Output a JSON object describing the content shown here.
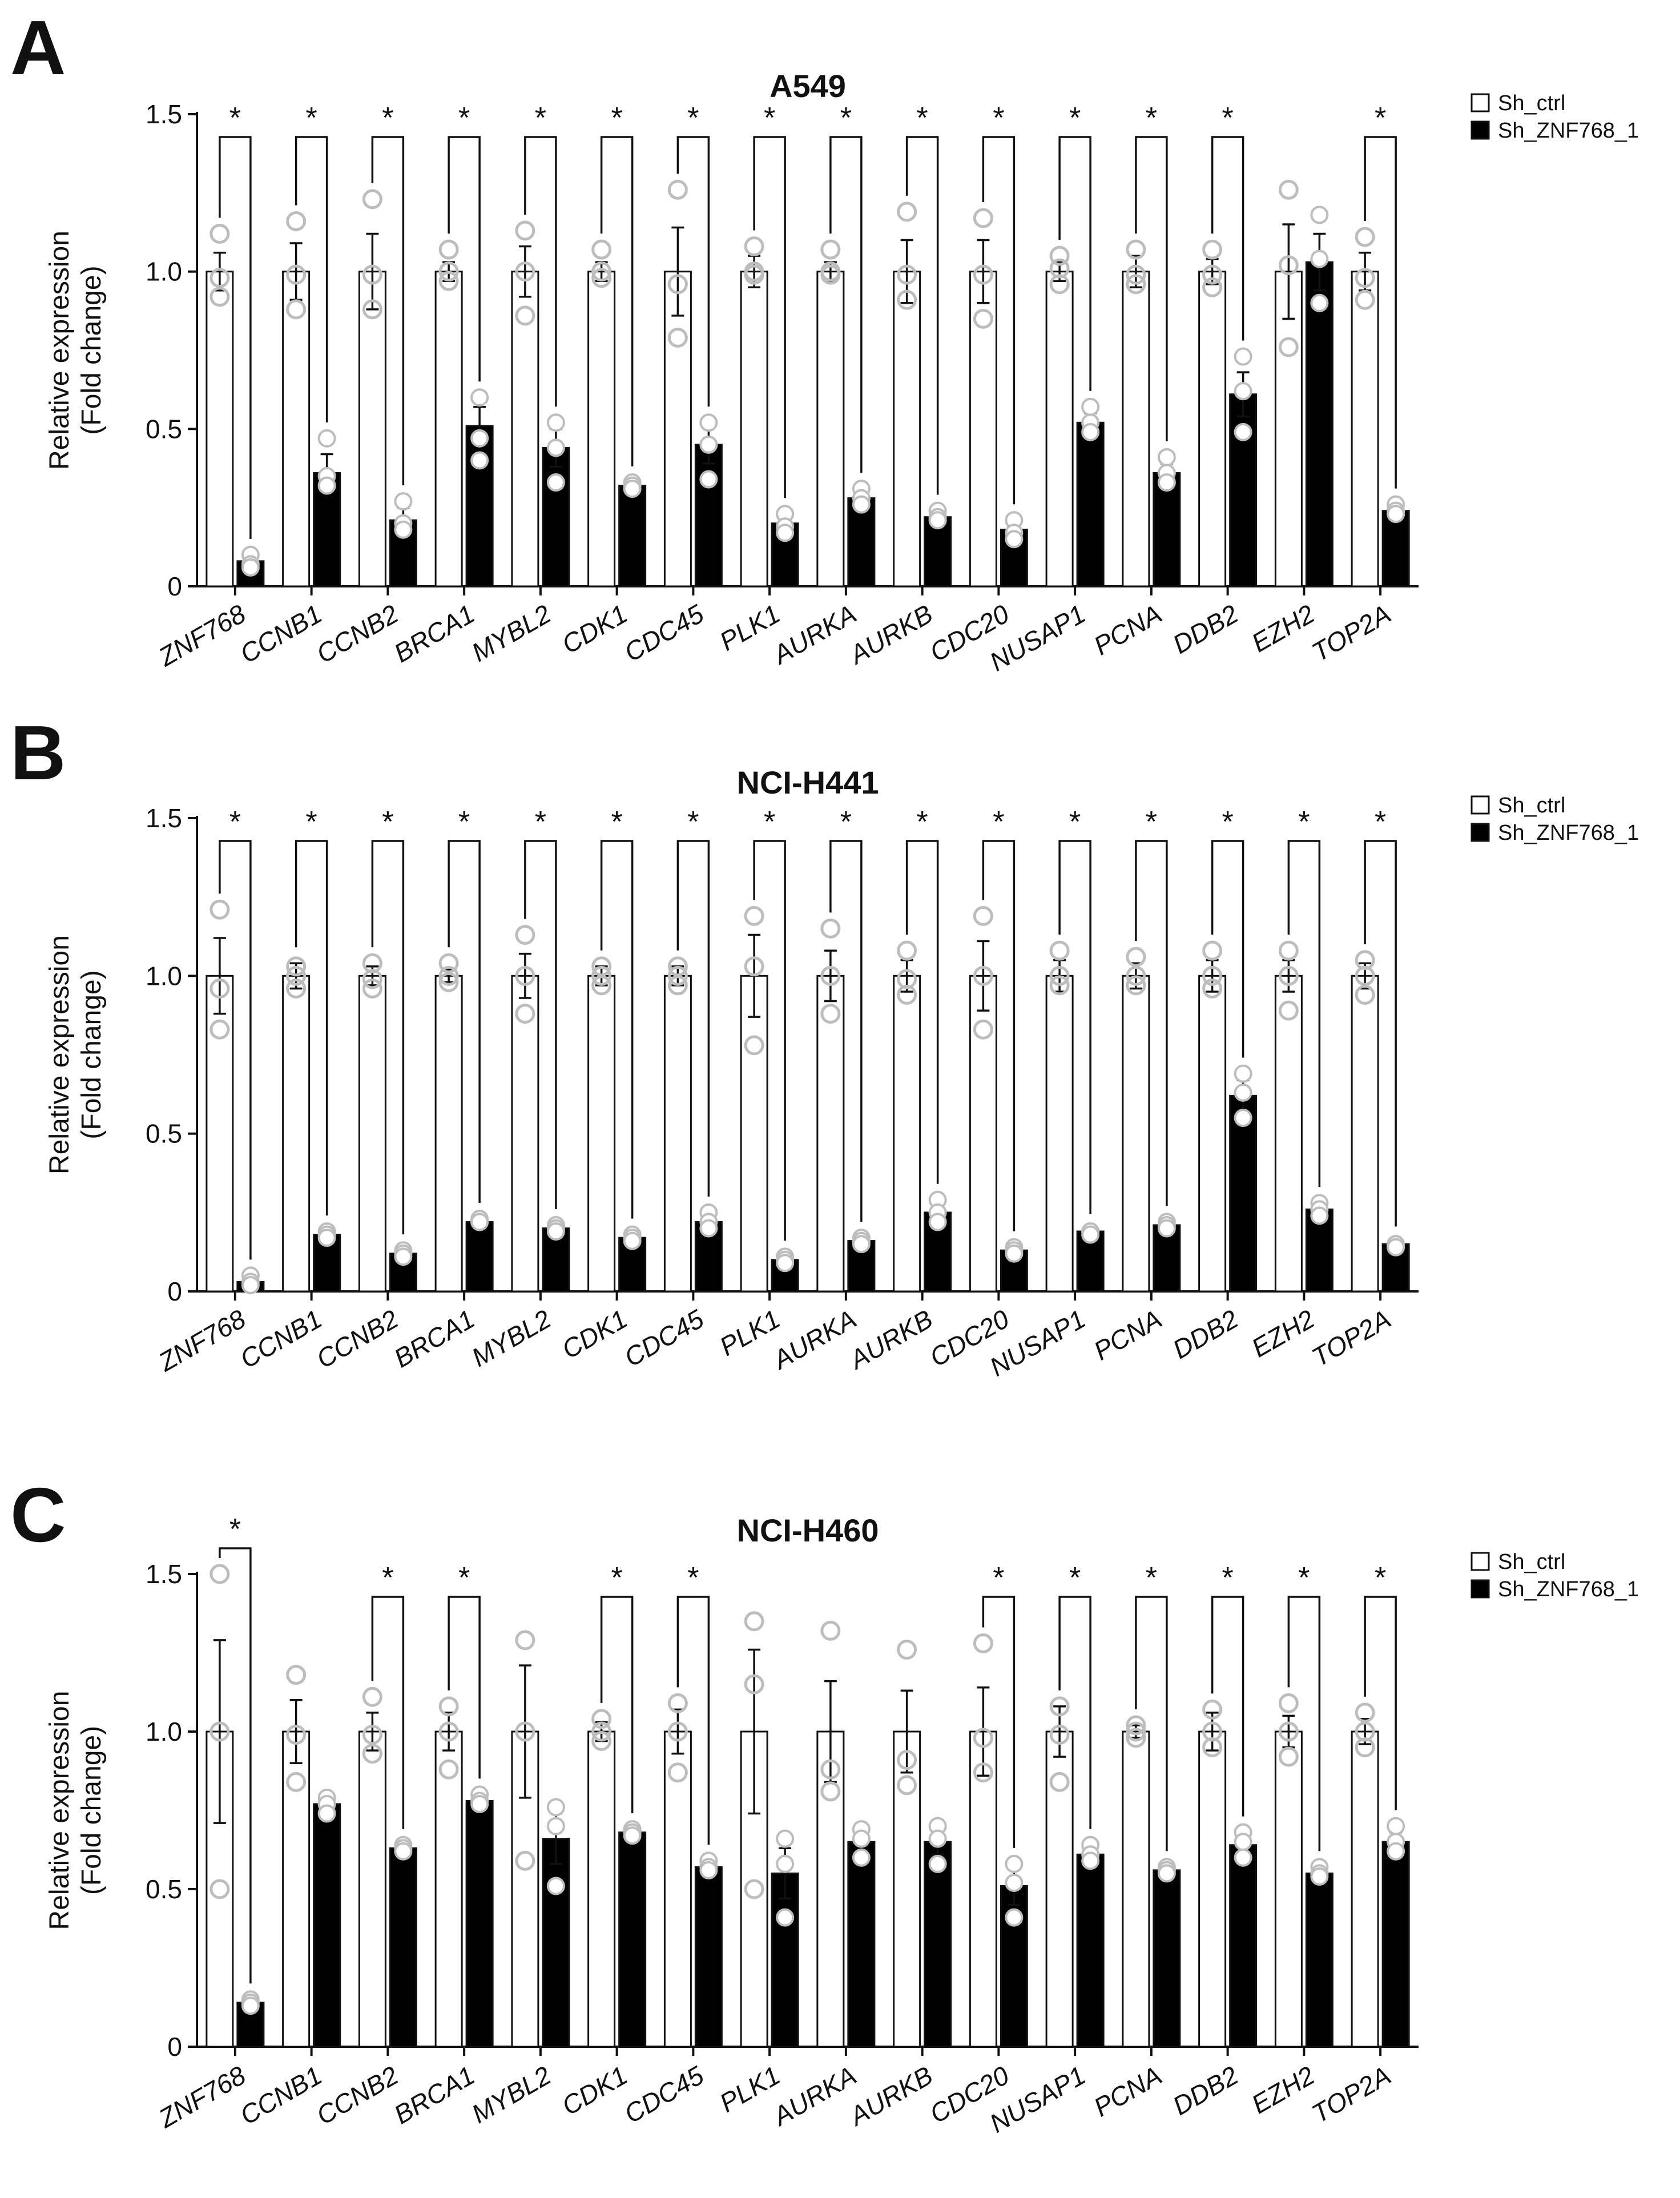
{
  "legend": {
    "ctrl_label": "Sh_ctrl",
    "kd_label": "Sh_ZNF768_1"
  },
  "colors": {
    "ctrl_fill": "#ffffff",
    "kd_fill": "#000000",
    "axis": "#111111",
    "ctrl_dot": "#bdbdbd",
    "kd_dot": "#ffffff"
  },
  "chart_data": [
    {
      "panel": "A",
      "type": "bar",
      "title": "A549",
      "ylabel_lines": [
        "Relative expression",
        "(Fold change)"
      ],
      "ylim": [
        0,
        1.5
      ],
      "yticks": [
        "0",
        "0.5",
        "1.0",
        "1.5"
      ],
      "categories": [
        "ZNF768",
        "CCNB1",
        "CCNB2",
        "BRCA1",
        "MYBL2",
        "CDK1",
        "CDC45",
        "PLK1",
        "AURKA",
        "AURKB",
        "CDC20",
        "NUSAP1",
        "PCNA",
        "DDB2",
        "EZH2",
        "TOP2A"
      ],
      "series": [
        {
          "name": "Sh_ctrl",
          "values": [
            1.0,
            1.0,
            1.0,
            1.0,
            1.0,
            1.0,
            1.0,
            1.0,
            1.0,
            1.0,
            1.0,
            1.0,
            1.0,
            1.0,
            1.0,
            1.0
          ],
          "errors": [
            0.06,
            0.09,
            0.12,
            0.03,
            0.08,
            0.03,
            0.14,
            0.05,
            0.03,
            0.1,
            0.1,
            0.03,
            0.05,
            0.04,
            0.15,
            0.06
          ],
          "points": [
            [
              1.12,
              0.98,
              0.92
            ],
            [
              1.16,
              0.99,
              0.88
            ],
            [
              1.23,
              0.99,
              0.88
            ],
            [
              1.07,
              1.0,
              0.97
            ],
            [
              1.13,
              1.0,
              0.86
            ],
            [
              1.07,
              1.0,
              0.98
            ],
            [
              1.26,
              0.96,
              0.79
            ],
            [
              1.08,
              1.0,
              0.99
            ],
            [
              1.07,
              1.0,
              0.99
            ],
            [
              1.19,
              0.99,
              0.91
            ],
            [
              1.17,
              0.99,
              0.85
            ],
            [
              1.05,
              1.01,
              0.96
            ],
            [
              1.07,
              0.99,
              0.96
            ],
            [
              1.07,
              0.99,
              0.95
            ],
            [
              1.26,
              1.02,
              0.76
            ],
            [
              1.11,
              0.98,
              0.91
            ]
          ]
        },
        {
          "name": "Sh_ZNF768_1",
          "values": [
            0.08,
            0.36,
            0.21,
            0.51,
            0.44,
            0.32,
            0.45,
            0.2,
            0.28,
            0.22,
            0.18,
            0.52,
            0.36,
            0.61,
            1.03,
            0.24
          ],
          "errors": [
            0.02,
            0.06,
            0.04,
            0.06,
            0.06,
            0.01,
            0.06,
            0.02,
            0.02,
            0.01,
            0.03,
            0.03,
            0.03,
            0.07,
            0.09,
            0.01
          ],
          "points": [
            [
              0.1,
              0.07,
              0.06
            ],
            [
              0.47,
              0.35,
              0.32
            ],
            [
              0.27,
              0.2,
              0.18
            ],
            [
              0.6,
              0.47,
              0.4
            ],
            [
              0.52,
              0.44,
              0.33
            ],
            [
              0.33,
              0.32,
              0.31
            ],
            [
              0.52,
              0.45,
              0.34
            ],
            [
              0.23,
              0.19,
              0.17
            ],
            [
              0.31,
              0.28,
              0.26
            ],
            [
              0.24,
              0.22,
              0.21
            ],
            [
              0.21,
              0.17,
              0.15
            ],
            [
              0.57,
              0.52,
              0.49
            ],
            [
              0.41,
              0.36,
              0.33
            ],
            [
              0.73,
              0.62,
              0.49
            ],
            [
              1.18,
              1.04,
              0.9
            ],
            [
              0.26,
              0.24,
              0.23
            ]
          ]
        }
      ],
      "significant": [
        true,
        true,
        true,
        true,
        true,
        true,
        true,
        true,
        true,
        true,
        true,
        true,
        true,
        true,
        false,
        true
      ],
      "sig_symbol": "*"
    },
    {
      "panel": "B",
      "type": "bar",
      "title": "NCI-H441",
      "ylabel_lines": [
        "Relative expression",
        "(Fold change)"
      ],
      "ylim": [
        0,
        1.5
      ],
      "yticks": [
        "0",
        "0.5",
        "1.0",
        "1.5"
      ],
      "categories": [
        "ZNF768",
        "CCNB1",
        "CCNB2",
        "BRCA1",
        "MYBL2",
        "CDK1",
        "CDC45",
        "PLK1",
        "AURKA",
        "AURKB",
        "CDC20",
        "NUSAP1",
        "PCNA",
        "DDB2",
        "EZH2",
        "TOP2A"
      ],
      "series": [
        {
          "name": "Sh_ctrl",
          "values": [
            1.0,
            1.0,
            1.0,
            1.0,
            1.0,
            1.0,
            1.0,
            1.0,
            1.0,
            1.0,
            1.0,
            1.0,
            1.0,
            1.0,
            1.0,
            1.0
          ],
          "errors": [
            0.12,
            0.04,
            0.03,
            0.02,
            0.07,
            0.03,
            0.03,
            0.13,
            0.08,
            0.05,
            0.11,
            0.05,
            0.04,
            0.05,
            0.05,
            0.04
          ],
          "points": [
            [
              1.21,
              0.96,
              0.83
            ],
            [
              1.03,
              1.0,
              0.96
            ],
            [
              1.04,
              0.99,
              0.96
            ],
            [
              1.04,
              1.0,
              0.98
            ],
            [
              1.13,
              1.0,
              0.88
            ],
            [
              1.03,
              1.0,
              0.97
            ],
            [
              1.03,
              1.0,
              0.97
            ],
            [
              1.19,
              1.03,
              0.78
            ],
            [
              1.15,
              1.0,
              0.88
            ],
            [
              1.08,
              0.99,
              0.94
            ],
            [
              1.19,
              1.0,
              0.83
            ],
            [
              1.08,
              1.0,
              0.97
            ],
            [
              1.06,
              1.0,
              0.97
            ],
            [
              1.08,
              1.0,
              0.96
            ],
            [
              1.08,
              1.0,
              0.89
            ],
            [
              1.05,
              1.0,
              0.94
            ]
          ]
        },
        {
          "name": "Sh_ZNF768_1",
          "values": [
            0.03,
            0.18,
            0.12,
            0.22,
            0.2,
            0.17,
            0.22,
            0.1,
            0.16,
            0.25,
            0.13,
            0.19,
            0.21,
            0.62,
            0.26,
            0.15
          ],
          "errors": [
            0.01,
            0.01,
            0.01,
            0.01,
            0.01,
            0.01,
            0.01,
            0.01,
            0.01,
            0.02,
            0.01,
            0.005,
            0.01,
            0.05,
            0.01,
            0.005
          ],
          "points": [
            [
              0.05,
              0.03,
              0.02
            ],
            [
              0.19,
              0.18,
              0.17
            ],
            [
              0.13,
              0.12,
              0.11
            ],
            [
              0.23,
              0.22,
              0.22
            ],
            [
              0.21,
              0.2,
              0.19
            ],
            [
              0.18,
              0.17,
              0.16
            ],
            [
              0.25,
              0.22,
              0.2
            ],
            [
              0.11,
              0.1,
              0.09
            ],
            [
              0.17,
              0.16,
              0.15
            ],
            [
              0.29,
              0.25,
              0.22
            ],
            [
              0.14,
              0.13,
              0.12
            ],
            [
              0.19,
              0.19,
              0.18
            ],
            [
              0.22,
              0.21,
              0.2
            ],
            [
              0.69,
              0.63,
              0.55
            ],
            [
              0.28,
              0.26,
              0.24
            ],
            [
              0.15,
              0.15,
              0.14
            ]
          ]
        }
      ],
      "significant": [
        true,
        true,
        true,
        true,
        true,
        true,
        true,
        true,
        true,
        true,
        true,
        true,
        true,
        true,
        true,
        true
      ],
      "sig_symbol": "*"
    },
    {
      "panel": "C",
      "type": "bar",
      "title": "NCI-H460",
      "ylabel_lines": [
        "Relative expression",
        "(Fold change)"
      ],
      "ylim": [
        0,
        1.5
      ],
      "yticks": [
        "0",
        "0.5",
        "1.0",
        "1.5"
      ],
      "categories": [
        "ZNF768",
        "CCNB1",
        "CCNB2",
        "BRCA1",
        "MYBL2",
        "CDK1",
        "CDC45",
        "PLK1",
        "AURKA",
        "AURKB",
        "CDC20",
        "NUSAP1",
        "PCNA",
        "DDB2",
        "EZH2",
        "TOP2A"
      ],
      "series": [
        {
          "name": "Sh_ctrl",
          "values": [
            1.0,
            1.0,
            1.0,
            1.0,
            1.0,
            1.0,
            1.0,
            1.0,
            1.0,
            1.0,
            1.0,
            1.0,
            1.0,
            1.0,
            1.0,
            1.0
          ],
          "errors": [
            0.29,
            0.1,
            0.06,
            0.06,
            0.21,
            0.03,
            0.07,
            0.26,
            0.16,
            0.13,
            0.14,
            0.08,
            0.02,
            0.06,
            0.05,
            0.04
          ],
          "points": [
            [
              1.5,
              1.0,
              0.5
            ],
            [
              1.18,
              0.99,
              0.84
            ],
            [
              1.11,
              0.99,
              0.93
            ],
            [
              1.08,
              1.0,
              0.88
            ],
            [
              1.29,
              1.0,
              0.59
            ],
            [
              1.04,
              1.0,
              0.97
            ],
            [
              1.09,
              1.0,
              0.87
            ],
            [
              1.35,
              1.15,
              0.5
            ],
            [
              1.32,
              0.88,
              0.81
            ],
            [
              1.26,
              0.91,
              0.83
            ],
            [
              1.28,
              0.98,
              0.87
            ],
            [
              1.08,
              0.99,
              0.84
            ],
            [
              1.02,
              1.0,
              0.98
            ],
            [
              1.07,
              1.0,
              0.95
            ],
            [
              1.09,
              1.0,
              0.92
            ],
            [
              1.06,
              1.0,
              0.95
            ]
          ]
        },
        {
          "name": "Sh_ZNF768_1",
          "values": [
            0.14,
            0.77,
            0.63,
            0.78,
            0.66,
            0.68,
            0.57,
            0.55,
            0.65,
            0.65,
            0.51,
            0.61,
            0.56,
            0.64,
            0.55,
            0.65
          ],
          "errors": [
            0.01,
            0.02,
            0.01,
            0.02,
            0.08,
            0.01,
            0.01,
            0.08,
            0.04,
            0.04,
            0.06,
            0.02,
            0.01,
            0.03,
            0.02,
            0.03
          ],
          "points": [
            [
              0.15,
              0.14,
              0.13
            ],
            [
              0.79,
              0.77,
              0.74
            ],
            [
              0.64,
              0.63,
              0.62
            ],
            [
              0.8,
              0.78,
              0.77
            ],
            [
              0.76,
              0.7,
              0.51
            ],
            [
              0.69,
              0.68,
              0.67
            ],
            [
              0.59,
              0.57,
              0.56
            ],
            [
              0.66,
              0.58,
              0.41
            ],
            [
              0.69,
              0.66,
              0.6
            ],
            [
              0.7,
              0.66,
              0.58
            ],
            [
              0.58,
              0.52,
              0.41
            ],
            [
              0.64,
              0.61,
              0.59
            ],
            [
              0.57,
              0.56,
              0.55
            ],
            [
              0.68,
              0.65,
              0.6
            ],
            [
              0.57,
              0.55,
              0.54
            ],
            [
              0.7,
              0.65,
              0.62
            ]
          ]
        }
      ],
      "significant": [
        true,
        false,
        true,
        true,
        false,
        true,
        true,
        false,
        false,
        false,
        true,
        true,
        true,
        true,
        true,
        true
      ],
      "sig_symbol": "*"
    }
  ]
}
